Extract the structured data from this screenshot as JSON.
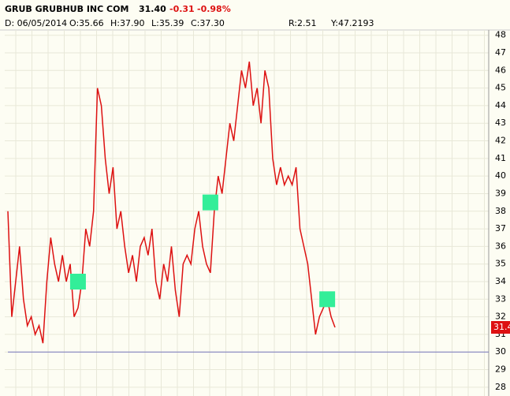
{
  "chart_data": {
    "type": "line",
    "header": {
      "symbol": "GRUB GRUBHUB INC COM",
      "last": "31.40",
      "change": "-0.31",
      "change_pct": "-0.98%",
      "date": "D: 06/05/2014",
      "open": "O:35.66",
      "high": "H:37.90",
      "low": "L:35.39",
      "close": "C:37.30",
      "r": "R:2.51",
      "y": "Y:47.2193"
    },
    "values": [
      38,
      32,
      34,
      36,
      33,
      31.5,
      32,
      31,
      31.5,
      30.5,
      34,
      36.5,
      35,
      34,
      35.5,
      34,
      35,
      32,
      32.5,
      34,
      37,
      36,
      38,
      45,
      44,
      41,
      39,
      40.5,
      37,
      38,
      36,
      34.5,
      35.5,
      34,
      36,
      36.5,
      35.5,
      37,
      34,
      33,
      35,
      34,
      36,
      33.5,
      32,
      35,
      35.5,
      35,
      37,
      38,
      36,
      35,
      34.5,
      38,
      40,
      39,
      41,
      43,
      42,
      44,
      46,
      45,
      46.5,
      44,
      45,
      43,
      46,
      45,
      41,
      39.5,
      40.5,
      39.5,
      40,
      39.5,
      40.5,
      37,
      36,
      35,
      33,
      31,
      32,
      32.5,
      33,
      32,
      31.4
    ],
    "color": "#dd1111",
    "ylim": [
      27.5,
      48.3
    ],
    "yticks": [
      28,
      29,
      30,
      31,
      32,
      33,
      34,
      35,
      36,
      37,
      38,
      39,
      40,
      41,
      42,
      43,
      44,
      45,
      46,
      47,
      48
    ],
    "grid": true,
    "hline": {
      "value": 30,
      "color": "#7777bb"
    },
    "markers": {
      "color": "#33ee99",
      "points": [
        {
          "index": 18,
          "value": 34
        },
        {
          "index": 52,
          "value": 38.5
        },
        {
          "index": 82,
          "value": 33
        }
      ]
    },
    "price_tag": {
      "label": "31.4",
      "value": 31.4,
      "color": "#dd1111"
    }
  }
}
